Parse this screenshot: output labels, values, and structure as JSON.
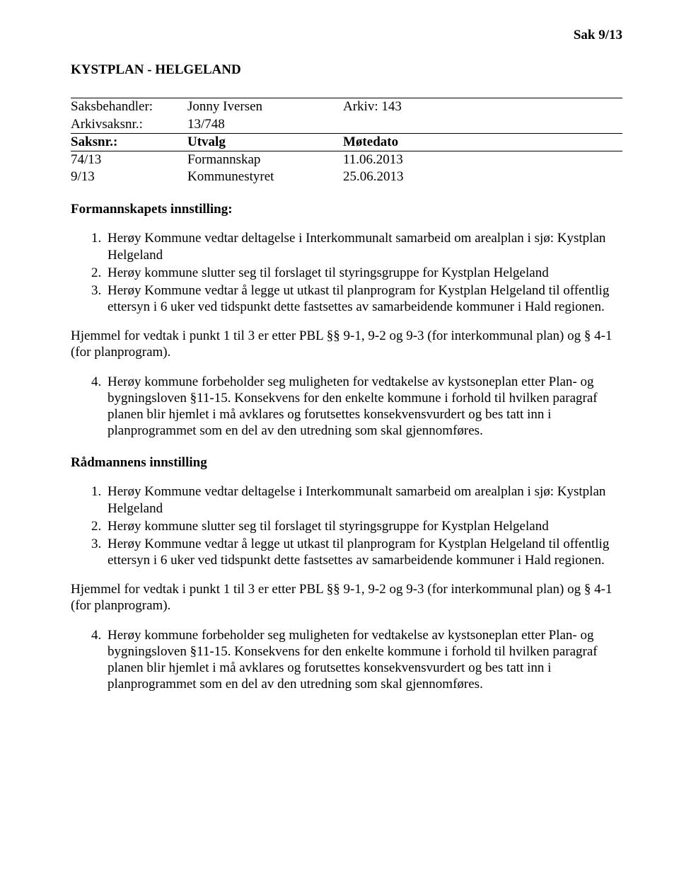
{
  "header": {
    "sak_label": "Sak  9/13"
  },
  "title": "KYSTPLAN - HELGELAND",
  "meta": {
    "saksbehandler_label": "Saksbehandler:",
    "saksbehandler_value": "Jonny Iversen",
    "arkiv": "Arkiv: 143",
    "arkivsaksnr_label": "Arkivsaksnr.:",
    "arkivsaksnr_value": "13/748",
    "saksnr_label": "Saksnr.:",
    "utvalg_label": "Utvalg",
    "motedato_label": "Møtedato",
    "rows": [
      {
        "saksnr": "74/13",
        "utvalg": "Formannskap",
        "dato": "11.06.2013"
      },
      {
        "saksnr": "9/13",
        "utvalg": "Kommunestyret",
        "dato": "25.06.2013"
      }
    ]
  },
  "section1": {
    "heading": "Formannskapets innstilling:",
    "items": [
      "Herøy Kommune vedtar deltagelse i Interkommunalt samarbeid om arealplan i sjø: Kystplan Helgeland",
      "Herøy kommune slutter seg til forslaget til styringsgruppe for Kystplan Helgeland",
      "Herøy Kommune vedtar å legge ut utkast til planprogram for Kystplan Helgeland til offentlig ettersyn i 6 uker ved tidspunkt dette fastsettes av samarbeidende kommuner i Hald regionen."
    ],
    "hjemmel": "Hjemmel for vedtak i punkt 1 til 3 er etter PBL §§ 9-1, 9-2 og 9-3 (for interkommunal plan) og § 4-1 (for planprogram).",
    "item4": "Herøy kommune forbeholder seg muligheten for vedtakelse av kystsoneplan etter Plan- og bygningsloven §11-15.  Konsekvens for den enkelte kommune i forhold til hvilken paragraf planen blir hjemlet i må avklares og forutsettes konsekvensvurdert og bes tatt inn i planprogrammet som en del av den utredning som skal gjennomføres."
  },
  "section2": {
    "heading": "Rådmannens innstilling",
    "items": [
      "Herøy Kommune vedtar deltagelse i Interkommunalt samarbeid om arealplan i sjø: Kystplan Helgeland",
      "Herøy kommune slutter seg til forslaget til styringsgruppe for Kystplan Helgeland",
      "Herøy Kommune vedtar å legge ut utkast til planprogram for Kystplan Helgeland til offentlig ettersyn i 6 uker ved tidspunkt dette fastsettes av samarbeidende kommuner i Hald regionen."
    ],
    "hjemmel": "Hjemmel for vedtak i punkt 1 til 3 er etter PBL §§ 9-1, 9-2 og 9-3 (for interkommunal plan) og § 4-1 (for planprogram).",
    "item4": "Herøy kommune forbeholder seg muligheten for vedtakelse av kystsoneplan etter Plan- og bygningsloven §11-15.  Konsekvens for den enkelte kommune i forhold til hvilken paragraf planen blir hjemlet i må avklares og forutsettes konsekvensvurdert og bes tatt inn i planprogrammet som en del av den utredning som skal gjennomføres."
  }
}
